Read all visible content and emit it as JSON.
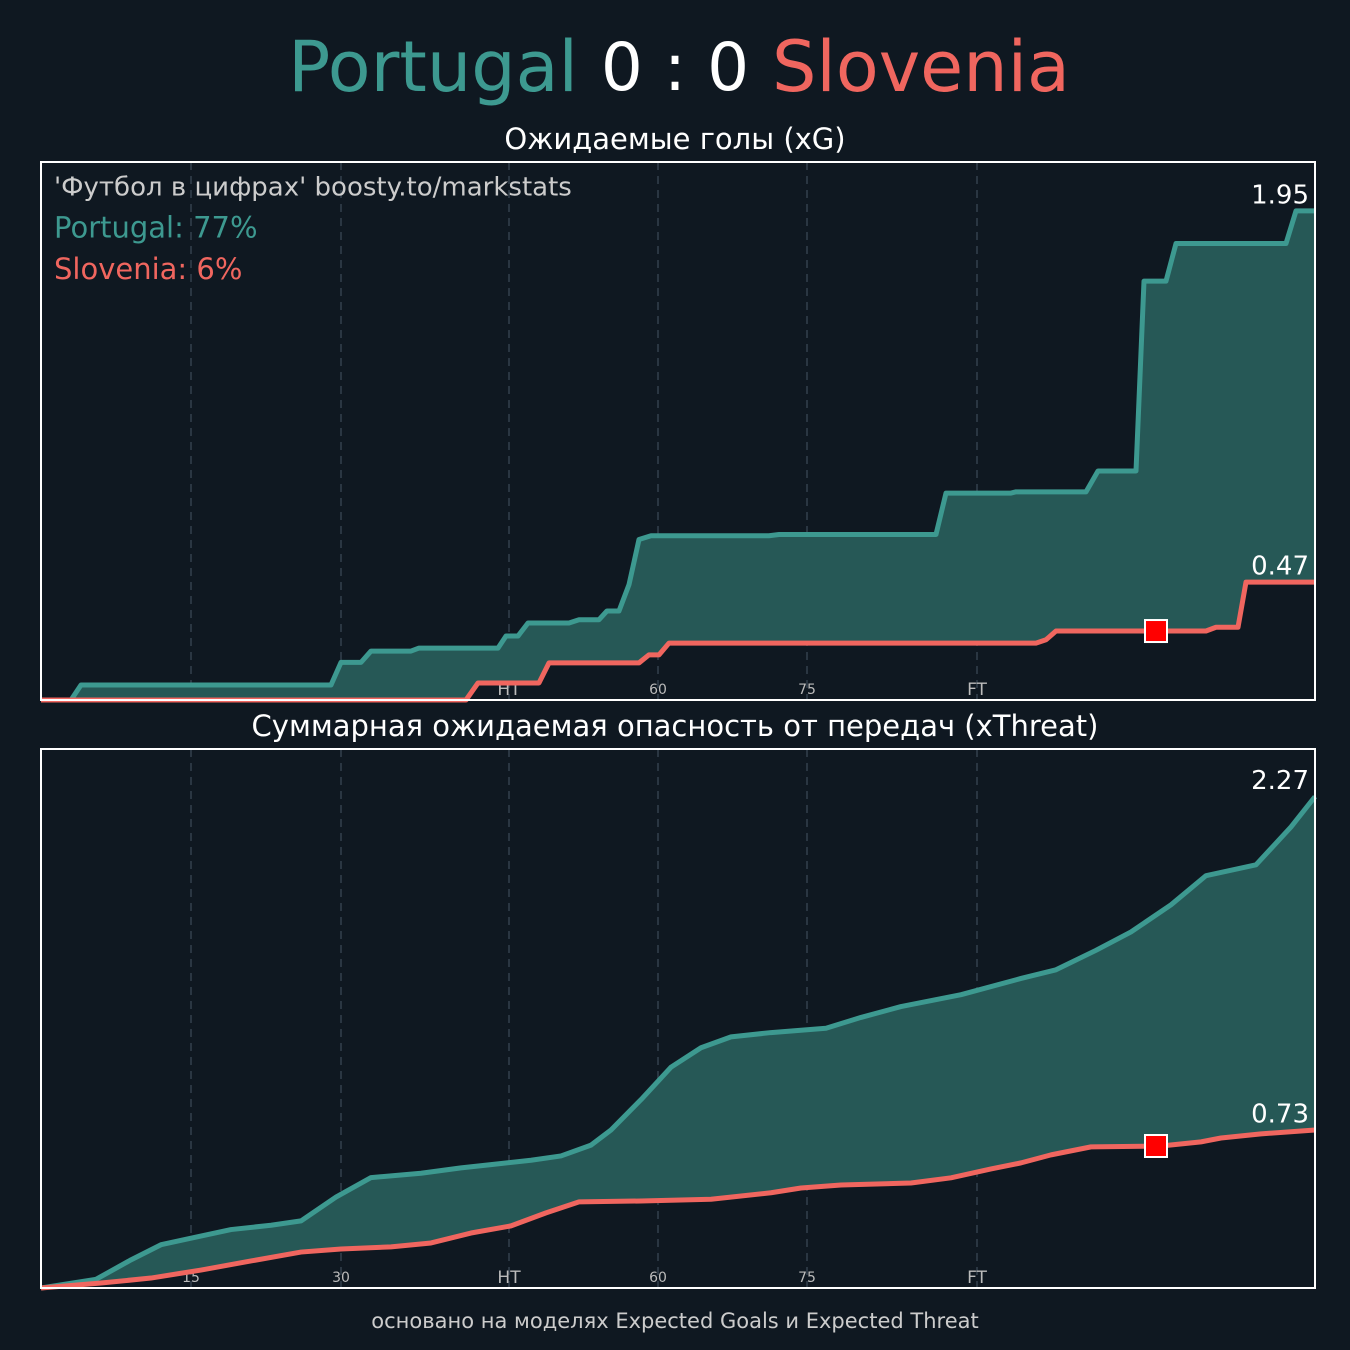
{
  "header": {
    "home": "Portugal",
    "score": "0 : 0",
    "away": "Slovenia",
    "home_color": "#3d9990",
    "away_color": "#f0665f"
  },
  "footer": "основано на моделях Expected Goals и Expected Threat",
  "chart_data": [
    {
      "type": "line",
      "title": "Ожидаемые голы (xG)",
      "xlim": [
        0,
        127.4
      ],
      "ylim": [
        0,
        2.145
      ],
      "xticks": [
        15,
        30,
        {
          "value": 46.8,
          "label": "HT"
        },
        {
          "value": 61.7,
          "label": "60"
        },
        {
          "value": 76.6,
          "label": "75"
        },
        {
          "value": 93.6,
          "label": "FT"
        }
      ],
      "grid": true,
      "fill_color": "#265856",
      "annotations": [
        {
          "text": "'Футбол в цифрах' boosty.to/markstats",
          "color": "#cccccc"
        },
        {
          "text": "Portugal: 77%",
          "color": "#3d9990"
        },
        {
          "text": "Slovenia: 6%",
          "color": "#f0665f"
        }
      ],
      "series": [
        {
          "name": "Portugal",
          "color": "#3d9990",
          "x": [
            0,
            3,
            4,
            29,
            30,
            32,
            33,
            37,
            37.8,
            45.7,
            46.5,
            47.7,
            48.7,
            52.8,
            53.8,
            55.8,
            56.6,
            57.8,
            58.8,
            59.8,
            61,
            72.8,
            73.8,
            89.5,
            90.5,
            97,
            97.5,
            104.5,
            105.7,
            109.5,
            110.3,
            112.5,
            113.5,
            124.5,
            125.5,
            127.4
          ],
          "values": [
            0,
            0,
            0.06,
            0.06,
            0.15,
            0.15,
            0.195,
            0.195,
            0.207,
            0.207,
            0.255,
            0.255,
            0.307,
            0.307,
            0.32,
            0.32,
            0.355,
            0.355,
            0.46,
            0.64,
            0.655,
            0.655,
            0.66,
            0.66,
            0.825,
            0.825,
            0.83,
            0.83,
            0.913,
            0.913,
            1.67,
            1.67,
            1.82,
            1.82,
            1.95,
            1.95
          ]
        },
        {
          "name": "Slovenia",
          "color": "#f0665f",
          "x": [
            0,
            42.5,
            43.7,
            49.8,
            50.8,
            59.8,
            60.8,
            61.8,
            62.8,
            99.5,
            100.5,
            101.5,
            116.5,
            117.5,
            119.7,
            120.5,
            127.4
          ],
          "values": [
            0,
            0,
            0.068,
            0.068,
            0.148,
            0.148,
            0.18,
            0.18,
            0.227,
            0.227,
            0.24,
            0.275,
            0.275,
            0.29,
            0.29,
            0.47,
            0.47
          ]
        }
      ],
      "markers": [
        {
          "x": 111.5,
          "y": 0.275,
          "color": "#ff0000"
        }
      ]
    },
    {
      "type": "line",
      "title": "Суммарная ожидаемая опасность от передач (xThreat)",
      "xlim": [
        0,
        127.4
      ],
      "ylim": [
        0,
        2.49
      ],
      "xticks": [
        15,
        30,
        {
          "value": 46.8,
          "label": "HT"
        },
        {
          "value": 61.7,
          "label": "60"
        },
        {
          "value": 76.6,
          "label": "75"
        },
        {
          "value": 93.6,
          "label": "FT"
        }
      ],
      "grid": true,
      "fill_color": "#265856",
      "series": [
        {
          "name": "Portugal",
          "color": "#3d9990",
          "x": [
            0,
            5.5,
            9,
            12,
            15,
            19,
            23,
            26,
            29.5,
            33,
            38,
            42,
            45,
            49,
            52,
            55,
            57,
            60,
            63,
            66,
            69,
            73,
            78.5,
            82,
            86,
            92,
            98,
            101.5,
            105.5,
            109,
            113,
            116.5,
            121.5,
            125,
            127.4
          ],
          "values": [
            0,
            0.04,
            0.13,
            0.2,
            0.23,
            0.27,
            0.29,
            0.31,
            0.42,
            0.51,
            0.53,
            0.555,
            0.57,
            0.59,
            0.61,
            0.66,
            0.73,
            0.87,
            1.02,
            1.11,
            1.16,
            1.18,
            1.2,
            1.25,
            1.3,
            1.355,
            1.43,
            1.47,
            1.56,
            1.645,
            1.77,
            1.905,
            1.955,
            2.13,
            2.27
          ]
        },
        {
          "name": "Slovenia",
          "color": "#f0665f",
          "x": [
            0,
            6,
            11,
            16,
            21,
            26,
            30,
            35,
            39,
            43,
            47,
            50.5,
            53.8,
            60,
            67,
            73,
            76,
            80,
            87,
            91,
            95,
            98,
            101,
            105,
            112,
            116,
            118,
            122,
            127.4
          ],
          "values": [
            0,
            0.023,
            0.046,
            0.083,
            0.125,
            0.166,
            0.18,
            0.19,
            0.208,
            0.254,
            0.287,
            0.347,
            0.398,
            0.402,
            0.41,
            0.44,
            0.462,
            0.476,
            0.485,
            0.509,
            0.55,
            0.578,
            0.615,
            0.652,
            0.656,
            0.675,
            0.693,
            0.712,
            0.73
          ]
        }
      ],
      "markers": [
        {
          "x": 111.5,
          "y": 0.656,
          "color": "#ff0000"
        }
      ]
    }
  ]
}
